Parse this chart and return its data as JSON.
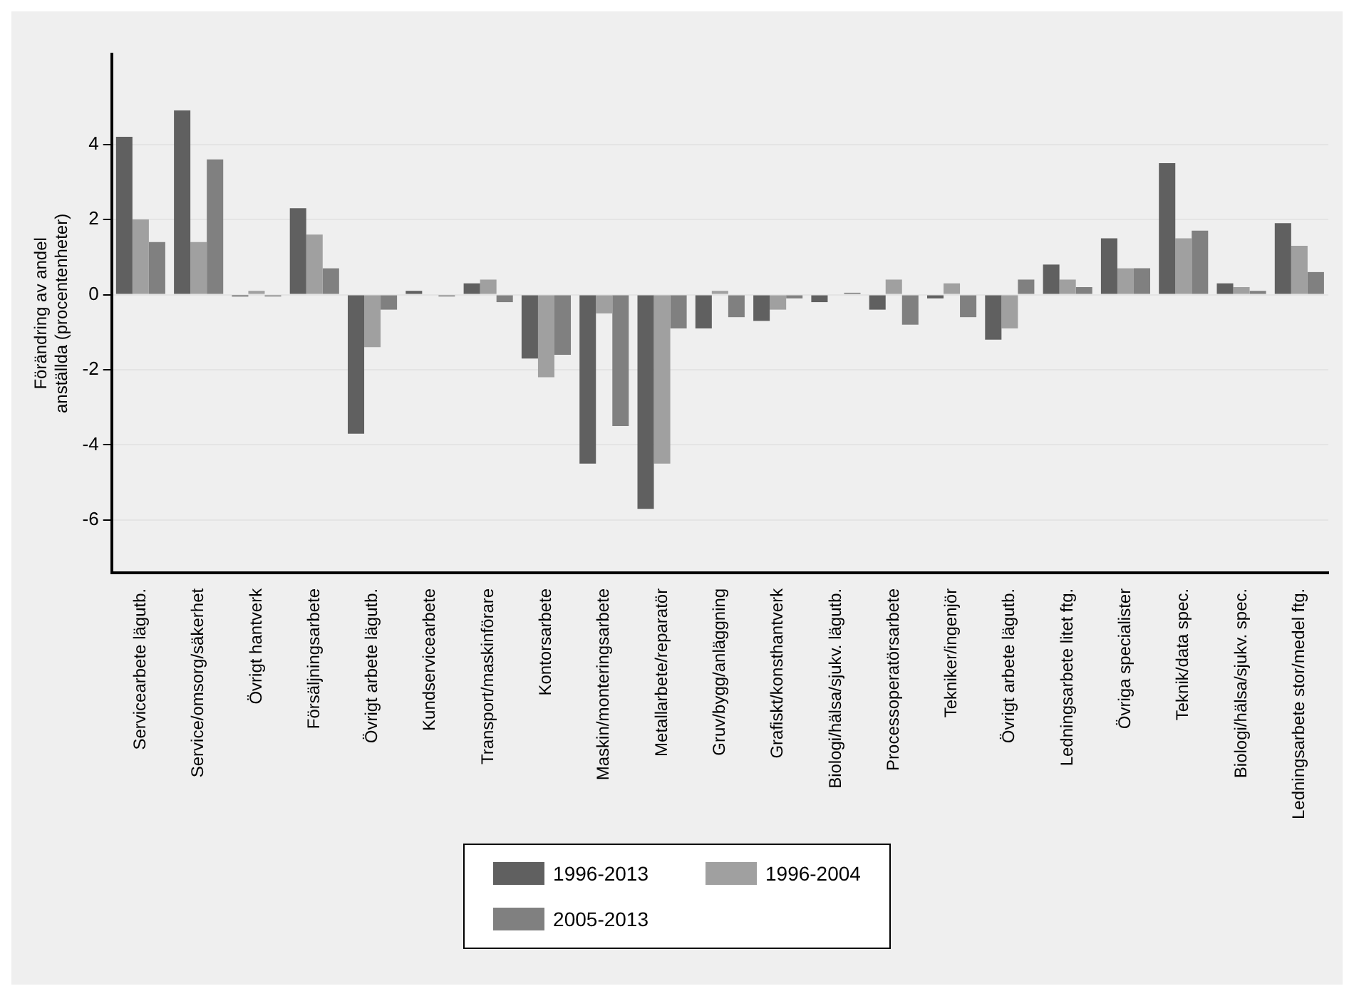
{
  "chart_data": {
    "type": "bar",
    "ylabel": "Förändring av andel\nanställda (procentenheter)",
    "categories": [
      "Servicearbete lägutb.",
      "Service/omsorg/säkerhet",
      "Övrigt hantverk",
      "Försäljningsarbete",
      "Övrigt arbete lägutb.",
      "Kundservicearbete",
      "Transport/maskinförare",
      "Kontorsarbete",
      "Maskin/monteringsarbete",
      "Metallarbete/reparatör",
      "Gruv/bygg/anläggning",
      "Grafiskt/konsthantverk",
      "Biologi/hälsa/sjukv. lägutb.",
      "Processoperatörsarbete",
      "Tekniker/ingenjör",
      "Övrigt arbete lägutb.",
      "Ledningsarbete litet ftg.",
      "Övriga specialister",
      "Teknik/data spec.",
      "Biologi/hälsa/sjukv. spec.",
      "Ledningsarbete stor/medel ftg."
    ],
    "series": [
      {
        "name": "1996-2013",
        "color": "#606060",
        "values": [
          4.2,
          4.9,
          -0.05,
          2.3,
          -3.7,
          0.1,
          0.3,
          -1.7,
          -4.5,
          -5.7,
          -0.9,
          -0.7,
          -0.2,
          -0.4,
          -0.1,
          -1.2,
          0.8,
          1.5,
          3.5,
          0.3,
          1.9
        ]
      },
      {
        "name": "1996-2004",
        "color": "#a0a0a0",
        "values": [
          2.0,
          1.4,
          0.1,
          1.6,
          -1.4,
          null,
          0.4,
          -2.2,
          -0.5,
          -4.5,
          0.1,
          -0.4,
          null,
          0.4,
          0.3,
          -0.9,
          0.4,
          0.7,
          1.5,
          0.2,
          1.3
        ]
      },
      {
        "name": "2005-2013",
        "color": "#808080",
        "values": [
          1.4,
          3.6,
          -0.05,
          0.7,
          -0.4,
          -0.05,
          -0.2,
          -1.6,
          -3.5,
          -0.9,
          -0.6,
          -0.1,
          0.05,
          -0.8,
          -0.6,
          0.4,
          0.2,
          0.7,
          1.7,
          0.1,
          0.6
        ]
      }
    ],
    "ylim": [
      -7.4,
      6.4
    ],
    "yticks": [
      -6,
      -4,
      -2,
      0,
      2,
      4
    ],
    "grid": "y",
    "legend": "bottom"
  }
}
